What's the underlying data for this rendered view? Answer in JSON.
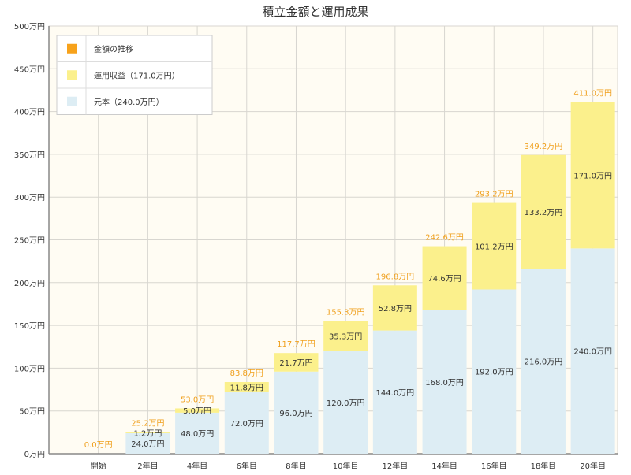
{
  "chart_data": {
    "type": "bar",
    "stacked": true,
    "title": "積立金額と運用成果",
    "categories": [
      "開始",
      "2年目",
      "4年目",
      "6年目",
      "8年目",
      "10年目",
      "12年目",
      "14年目",
      "16年目",
      "18年目",
      "20年目"
    ],
    "series": [
      {
        "name": "元本（240.0万円）",
        "color": "#ddedf4",
        "values": [
          0,
          24.0,
          48.0,
          72.0,
          96.0,
          120.0,
          144.0,
          168.0,
          192.0,
          216.0,
          240.0
        ],
        "labels": [
          "",
          "24.0万円",
          "48.0万円",
          "72.0万円",
          "96.0万円",
          "120.0万円",
          "144.0万円",
          "168.0万円",
          "192.0万円",
          "216.0万円",
          "240.0万円"
        ]
      },
      {
        "name": "運用収益（171.0万円）",
        "color": "#fbf08c",
        "values": [
          0,
          1.2,
          5.0,
          11.8,
          21.7,
          35.3,
          52.8,
          74.6,
          101.2,
          133.2,
          171.0
        ],
        "labels": [
          "",
          "1.2万円",
          "5.0万円",
          "11.8万円",
          "21.7万円",
          "35.3万円",
          "52.8万円",
          "74.6万円",
          "101.2万円",
          "133.2万円",
          "171.0万円"
        ]
      }
    ],
    "totals": {
      "name": "金額の推移",
      "color": "#f7a21b",
      "values": [
        0.0,
        25.2,
        53.0,
        83.8,
        117.7,
        155.3,
        196.8,
        242.6,
        293.2,
        349.2,
        411.0
      ],
      "labels": [
        "0.0万円",
        "25.2万円",
        "53.0万円",
        "83.8万円",
        "117.7万円",
        "155.3万円",
        "196.8万円",
        "242.6万円",
        "293.2万円",
        "349.2万円",
        "411.0万円"
      ]
    },
    "ylim": [
      0,
      500
    ],
    "yticks": [
      0,
      50,
      100,
      150,
      200,
      250,
      300,
      350,
      400,
      450,
      500
    ],
    "ytick_labels": [
      "0万円",
      "50万円",
      "100万円",
      "150万円",
      "200万円",
      "250万円",
      "300万円",
      "350万円",
      "400万円",
      "450万円",
      "500万円"
    ],
    "grid": true,
    "legend_position": "top-left",
    "legend": [
      "金額の推移",
      "運用収益（171.0万円）",
      "元本（240.0万円）"
    ],
    "colors": {
      "plot_background": "#fffcf3",
      "grid": "#d8d6d0",
      "axis": "#888888",
      "total_label": "#f0a01e"
    }
  }
}
